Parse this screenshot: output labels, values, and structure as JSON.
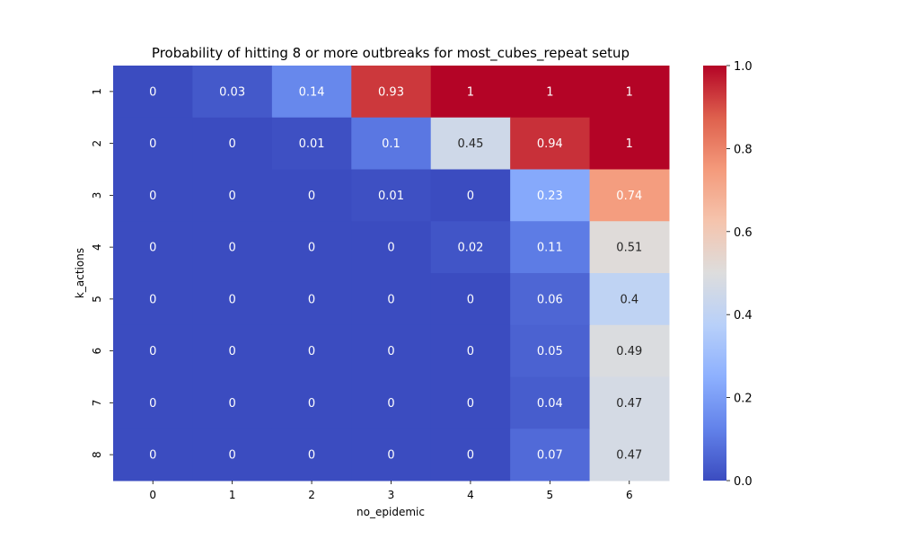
{
  "chart_data": {
    "type": "heatmap",
    "title": "Probability of hitting 8 or more outbreaks for most_cubes_repeat setup",
    "xlabel": "no_epidemic",
    "ylabel": "k_actions",
    "x_categories": [
      "0",
      "1",
      "2",
      "3",
      "4",
      "5",
      "6"
    ],
    "y_categories": [
      "1",
      "2",
      "3",
      "4",
      "5",
      "6",
      "7",
      "8"
    ],
    "values": [
      [
        0,
        0.03,
        0.14,
        0.93,
        1,
        1,
        1
      ],
      [
        0,
        0,
        0.01,
        0.1,
        0.45,
        0.94,
        1
      ],
      [
        0,
        0,
        0,
        0.01,
        0,
        0.23,
        0.74
      ],
      [
        0,
        0,
        0,
        0,
        0.02,
        0.11,
        0.51
      ],
      [
        0,
        0,
        0,
        0,
        0,
        0.06,
        0.4
      ],
      [
        0,
        0,
        0,
        0,
        0,
        0.05,
        0.49
      ],
      [
        0,
        0,
        0,
        0,
        0,
        0.04,
        0.47
      ],
      [
        0,
        0,
        0,
        0,
        0,
        0.07,
        0.47
      ]
    ],
    "colormap": "coolwarm",
    "vmin": 0,
    "vmax": 1,
    "colorbar_ticks": [
      "0.0",
      "0.2",
      "0.4",
      "0.6",
      "0.8",
      "1.0"
    ]
  }
}
